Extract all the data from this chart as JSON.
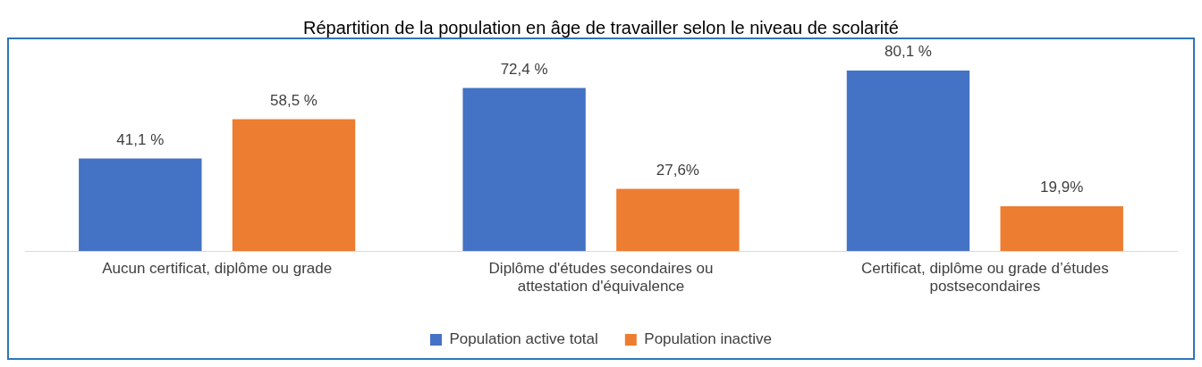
{
  "chart_data": {
    "type": "bar",
    "title": "Répartition de la population en âge de travailler selon le niveau de scolarité",
    "categories": [
      "Aucun certificat, diplôme ou grade",
      "Diplôme d'études secondaires ou attestation d'équivalence",
      "Certificat, diplôme ou grade d’études postsecondaires"
    ],
    "series": [
      {
        "name": "Population active total",
        "color": "#4472c4",
        "values": [
          41.1,
          72.4,
          80.1
        ],
        "value_labels": [
          "41,1 %",
          "72,4 %",
          "80,1 %"
        ]
      },
      {
        "name": "Population inactive",
        "color": "#ed7d31",
        "values": [
          58.5,
          27.6,
          19.9
        ],
        "value_labels": [
          "58,5 %",
          "27,6%",
          "19,9%"
        ]
      }
    ],
    "legend": "bottom",
    "grid": false
  }
}
